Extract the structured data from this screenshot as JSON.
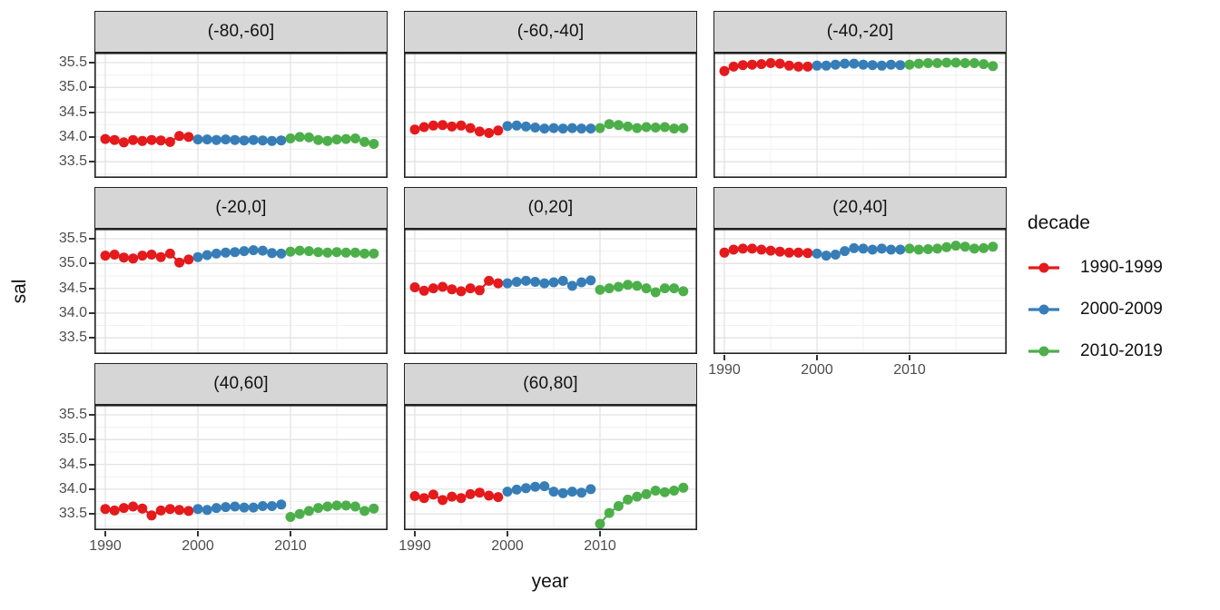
{
  "figure": {
    "xlabel": "year",
    "ylabel": "sal",
    "legend_title": "decade"
  },
  "colors": {
    "red": "#E41A1C",
    "blue": "#377EB8",
    "green": "#4DAF4A",
    "strip_bg": "#D6D6D6",
    "panel_bg": "#FFFFFF",
    "grid_major": "#E3E3E3",
    "grid_minor": "#F1F1F1",
    "panel_border": "#222222",
    "tick_text": "#4D4D4D",
    "title_text": "#111111"
  },
  "chart_data": {
    "type": "line",
    "title": "",
    "xlabel": "year",
    "ylabel": "sal",
    "facet_variable": "latitude band",
    "grid": true,
    "x_ticks": [
      1990,
      2000,
      2010
    ],
    "x_tick_labels": [
      "1990",
      "2000",
      "2010"
    ],
    "x_minor_ticks": [
      1995,
      2005,
      2015
    ],
    "y_ticks": [
      35.5,
      35.0,
      34.5,
      34.0,
      33.5
    ],
    "y_tick_labels": [
      "35.5",
      "35.0",
      "34.5",
      "34.0",
      "33.5"
    ],
    "y_minor_ticks": [
      35.25,
      34.75,
      34.25,
      33.75,
      33.25
    ],
    "xlim": [
      1988.9,
      2020.5
    ],
    "ylim": [
      33.17,
      35.7
    ],
    "legend": {
      "title": "decade",
      "position": "right",
      "entries": [
        {
          "label": "1990-1999",
          "color": "#E41A1C"
        },
        {
          "label": "2000-2009",
          "color": "#377EB8"
        },
        {
          "label": "2010-2019",
          "color": "#4DAF4A"
        }
      ]
    },
    "facets": [
      {
        "label": "(-80,-60]",
        "series": [
          {
            "name": "1990-1999",
            "color": "#E41A1C",
            "start_year": 1990,
            "values": [
              33.96,
              33.94,
              33.89,
              33.94,
              33.92,
              33.94,
              33.93,
              33.9,
              34.02,
              34.0
            ]
          },
          {
            "name": "2000-2009",
            "color": "#377EB8",
            "start_year": 2000,
            "values": [
              33.95,
              33.95,
              33.94,
              33.95,
              33.94,
              33.93,
              33.94,
              33.93,
              33.92,
              33.93
            ]
          },
          {
            "name": "2010-2019",
            "color": "#4DAF4A",
            "start_year": 2010,
            "values": [
              33.97,
              34.0,
              33.99,
              33.94,
              33.92,
              33.95,
              33.96,
              33.97,
              33.9,
              33.86
            ]
          }
        ]
      },
      {
        "label": "(-60,-40]",
        "series": [
          {
            "name": "1990-1999",
            "color": "#E41A1C",
            "start_year": 1990,
            "values": [
              34.15,
              34.2,
              34.23,
              34.24,
              34.21,
              34.23,
              34.18,
              34.11,
              34.08,
              34.13
            ]
          },
          {
            "name": "2000-2009",
            "color": "#377EB8",
            "start_year": 2000,
            "values": [
              34.22,
              34.23,
              34.21,
              34.19,
              34.17,
              34.18,
              34.17,
              34.18,
              34.17,
              34.17
            ]
          },
          {
            "name": "2010-2019",
            "color": "#4DAF4A",
            "start_year": 2010,
            "values": [
              34.18,
              34.26,
              34.24,
              34.21,
              34.18,
              34.2,
              34.19,
              34.2,
              34.17,
              34.18
            ]
          }
        ]
      },
      {
        "label": "(-40,-20]",
        "series": [
          {
            "name": "1990-1999",
            "color": "#E41A1C",
            "start_year": 1990,
            "values": [
              35.33,
              35.42,
              35.45,
              35.46,
              35.47,
              35.49,
              35.48,
              35.44,
              35.42,
              35.42
            ]
          },
          {
            "name": "2000-2009",
            "color": "#377EB8",
            "start_year": 2000,
            "values": [
              35.44,
              35.44,
              35.46,
              35.48,
              35.48,
              35.46,
              35.45,
              35.44,
              35.46,
              35.45
            ]
          },
          {
            "name": "2010-2019",
            "color": "#4DAF4A",
            "start_year": 2010,
            "values": [
              35.46,
              35.48,
              35.49,
              35.49,
              35.5,
              35.5,
              35.49,
              35.49,
              35.47,
              35.43
            ]
          }
        ]
      },
      {
        "label": "(-20,0]",
        "series": [
          {
            "name": "1990-1999",
            "color": "#E41A1C",
            "start_year": 1990,
            "values": [
              35.16,
              35.18,
              35.12,
              35.1,
              35.16,
              35.18,
              35.13,
              35.2,
              35.02,
              35.08
            ]
          },
          {
            "name": "2000-2009",
            "color": "#377EB8",
            "start_year": 2000,
            "values": [
              35.13,
              35.17,
              35.2,
              35.22,
              35.23,
              35.25,
              35.27,
              35.26,
              35.21,
              35.2
            ]
          },
          {
            "name": "2010-2019",
            "color": "#4DAF4A",
            "start_year": 2010,
            "values": [
              35.24,
              35.26,
              35.25,
              35.23,
              35.22,
              35.23,
              35.22,
              35.22,
              35.2,
              35.2
            ]
          }
        ]
      },
      {
        "label": "(0,20]",
        "series": [
          {
            "name": "1990-1999",
            "color": "#E41A1C",
            "start_year": 1990,
            "values": [
              34.52,
              34.45,
              34.5,
              34.53,
              34.48,
              34.44,
              34.5,
              34.46,
              34.65,
              34.6
            ]
          },
          {
            "name": "2000-2009",
            "color": "#377EB8",
            "start_year": 2000,
            "values": [
              34.6,
              34.63,
              34.65,
              34.63,
              34.6,
              34.62,
              34.65,
              34.55,
              34.62,
              34.66
            ]
          },
          {
            "name": "2010-2019",
            "color": "#4DAF4A",
            "start_year": 2010,
            "values": [
              34.47,
              34.5,
              34.53,
              34.57,
              34.55,
              34.5,
              34.42,
              34.5,
              34.5,
              34.44
            ]
          }
        ]
      },
      {
        "label": "(20,40]",
        "series": [
          {
            "name": "1990-1999",
            "color": "#E41A1C",
            "start_year": 1990,
            "values": [
              35.22,
              35.28,
              35.3,
              35.3,
              35.28,
              35.26,
              35.24,
              35.22,
              35.22,
              35.21
            ]
          },
          {
            "name": "2000-2009",
            "color": "#377EB8",
            "start_year": 2000,
            "values": [
              35.2,
              35.16,
              35.18,
              35.25,
              35.31,
              35.3,
              35.28,
              35.3,
              35.28,
              35.28
            ]
          },
          {
            "name": "2010-2019",
            "color": "#4DAF4A",
            "start_year": 2010,
            "values": [
              35.3,
              35.28,
              35.29,
              35.3,
              35.33,
              35.36,
              35.34,
              35.3,
              35.31,
              35.34
            ]
          }
        ]
      },
      {
        "label": "(40,60]",
        "series": [
          {
            "name": "1990-1999",
            "color": "#E41A1C",
            "start_year": 1990,
            "values": [
              33.6,
              33.57,
              33.62,
              33.65,
              33.61,
              33.47,
              33.57,
              33.6,
              33.58,
              33.56
            ]
          },
          {
            "name": "2000-2009",
            "color": "#377EB8",
            "start_year": 2000,
            "values": [
              33.6,
              33.58,
              33.62,
              33.64,
              33.65,
              33.63,
              33.63,
              33.66,
              33.66,
              33.69
            ]
          },
          {
            "name": "2010-2019",
            "color": "#4DAF4A",
            "start_year": 2010,
            "values": [
              33.44,
              33.5,
              33.56,
              33.62,
              33.65,
              33.67,
              33.67,
              33.65,
              33.56,
              33.61
            ]
          }
        ]
      },
      {
        "label": "(60,80]",
        "series": [
          {
            "name": "1990-1999",
            "color": "#E41A1C",
            "start_year": 1990,
            "values": [
              33.86,
              33.82,
              33.89,
              33.78,
              33.85,
              33.82,
              33.9,
              33.93,
              33.87,
              33.84
            ]
          },
          {
            "name": "2000-2009",
            "color": "#377EB8",
            "start_year": 2000,
            "values": [
              33.95,
              33.99,
              34.02,
              34.05,
              34.06,
              33.95,
              33.92,
              33.95,
              33.93,
              34.0
            ]
          },
          {
            "name": "2010-2019",
            "color": "#4DAF4A",
            "start_year": 2010,
            "values": [
              33.3,
              33.52,
              33.66,
              33.79,
              33.85,
              33.9,
              33.97,
              33.94,
              33.97,
              34.03
            ]
          }
        ]
      }
    ]
  }
}
